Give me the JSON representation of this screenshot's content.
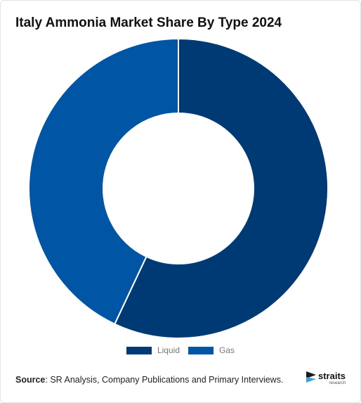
{
  "chart_data": {
    "type": "pie",
    "variant": "donut",
    "title": "Italy Ammonia Market Share By Type 2024",
    "categories": [
      "Liquid",
      "Gas"
    ],
    "values": [
      57,
      43
    ],
    "colors": [
      "#003a75",
      "#0055a5"
    ],
    "legend": "bottom"
  },
  "footer": {
    "source_label": "Source",
    "source_text": "SR Analysis, Company Publications and Primary Interviews."
  },
  "logo": {
    "name": "straits",
    "tagline": "research",
    "icon": "straits-logo-icon"
  }
}
